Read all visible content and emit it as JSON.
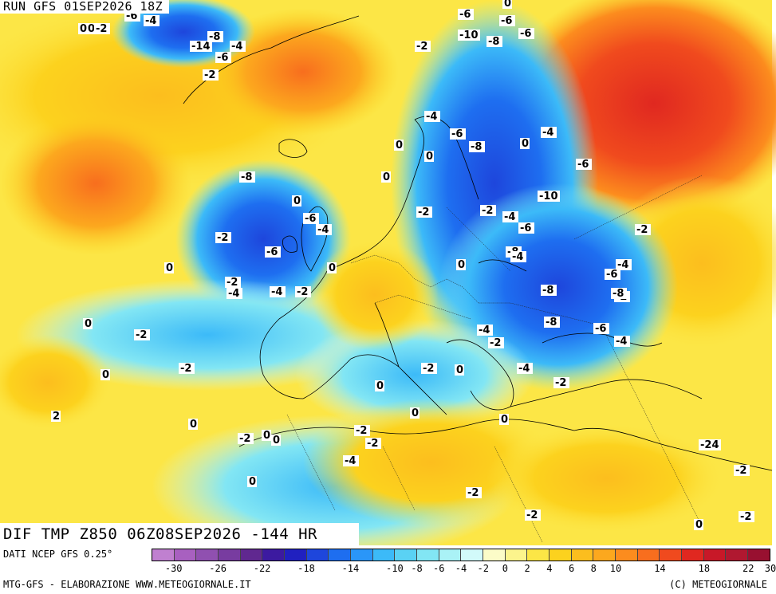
{
  "header": {
    "run_title": "RUN GFS 01SEP2026 18Z"
  },
  "map": {
    "title": "DIF TMP Z850 06Z08SEP2026 -144 HR",
    "contour_labels": [
      "0",
      "-2",
      "-6",
      "-4",
      "-14",
      "-8",
      "-6",
      "-2",
      "0",
      "-10",
      "-6",
      "-2",
      "-4",
      "-6",
      "-8",
      "-6",
      "-8",
      "-4",
      "0",
      "-2",
      "0",
      "-8",
      "-6",
      "-2",
      "-4",
      "-6",
      "-8",
      "-10",
      "-2",
      "-4",
      "-6",
      "-2",
      "0",
      "-8",
      "-4",
      "-2",
      "-6",
      "-2",
      "-4",
      "-2",
      "0",
      "-4",
      "-6",
      "-2",
      "-4",
      "-4",
      "-8",
      "-8",
      "-4",
      "-2",
      "-4",
      "-2",
      "0",
      "-2",
      "0",
      "0",
      "0",
      "2",
      "0",
      "-2",
      "0",
      "-4",
      "-2",
      "-2",
      "0",
      "0",
      "0",
      "0",
      "0",
      "0",
      "-2",
      "0",
      "-2",
      "-2",
      "-2",
      "-2",
      "0",
      "-24",
      "0",
      "-6",
      "-6",
      "0",
      "-4"
    ]
  },
  "legend": {
    "source": "DATI NCEP GFS 0.25°",
    "colors": [
      "#c080d0",
      "#a860c0",
      "#9050b0",
      "#783ca0",
      "#602890",
      "#3c1aa0",
      "#2020c0",
      "#1e46dc",
      "#1e6ef0",
      "#2a96f8",
      "#3cbaf8",
      "#5ad2f4",
      "#82e6f4",
      "#aaf2f6",
      "#d2fafa",
      "#fcfcc8",
      "#fcf48c",
      "#fce646",
      "#fcd21e",
      "#fcbe1e",
      "#fca81e",
      "#fc8c1e",
      "#f86e1e",
      "#f04a1e",
      "#e02820",
      "#c81828",
      "#b01830",
      "#981030"
    ],
    "tick_labels": [
      "-30",
      "-26",
      "-22",
      "-18",
      "-14",
      "-10",
      "-8",
      "-6",
      "-4",
      "-2",
      "0",
      "2",
      "4",
      "6",
      "8",
      "10",
      "14",
      "18",
      "22",
      "30"
    ]
  },
  "footer": {
    "credit_left": "MTG-GFS - ELABORAZIONE WWW.METEOGIORNALE.IT",
    "credit_right": "(C) METEOGIORNALE"
  }
}
